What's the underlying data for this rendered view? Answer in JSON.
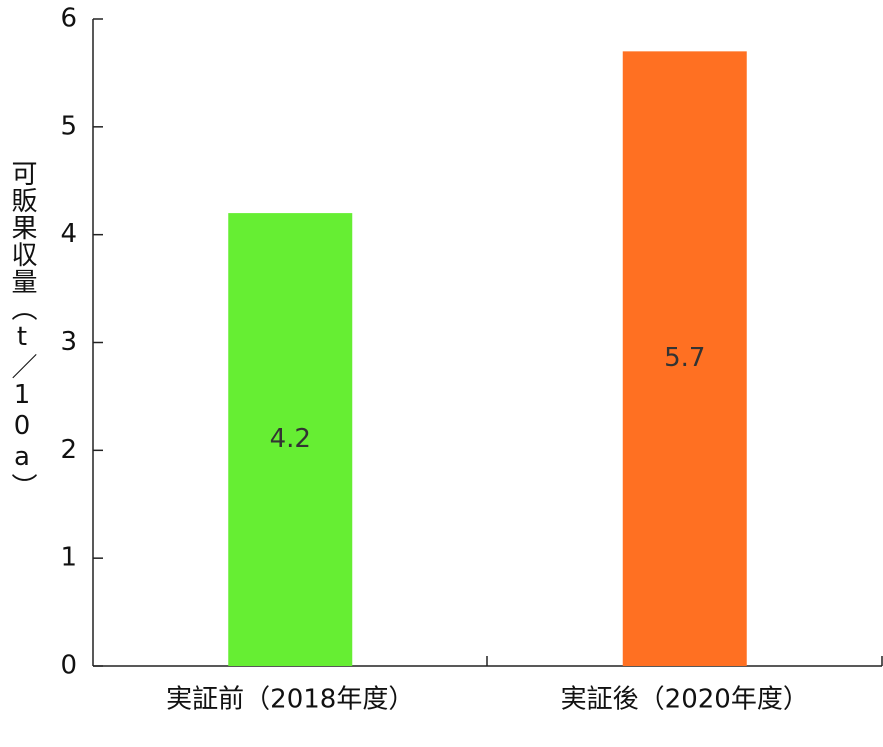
{
  "chart_data": {
    "type": "bar",
    "y_label": "可販果収量（t／10a）",
    "categories": [
      "実証前（2018年度）",
      "実証後（2020年度）"
    ],
    "values": [
      4.2,
      5.7
    ],
    "colors": [
      "#66ee33",
      "#ff7022"
    ],
    "ylim": [
      0,
      6
    ],
    "yticks": [
      0,
      1,
      2,
      3,
      4,
      5,
      6
    ]
  }
}
